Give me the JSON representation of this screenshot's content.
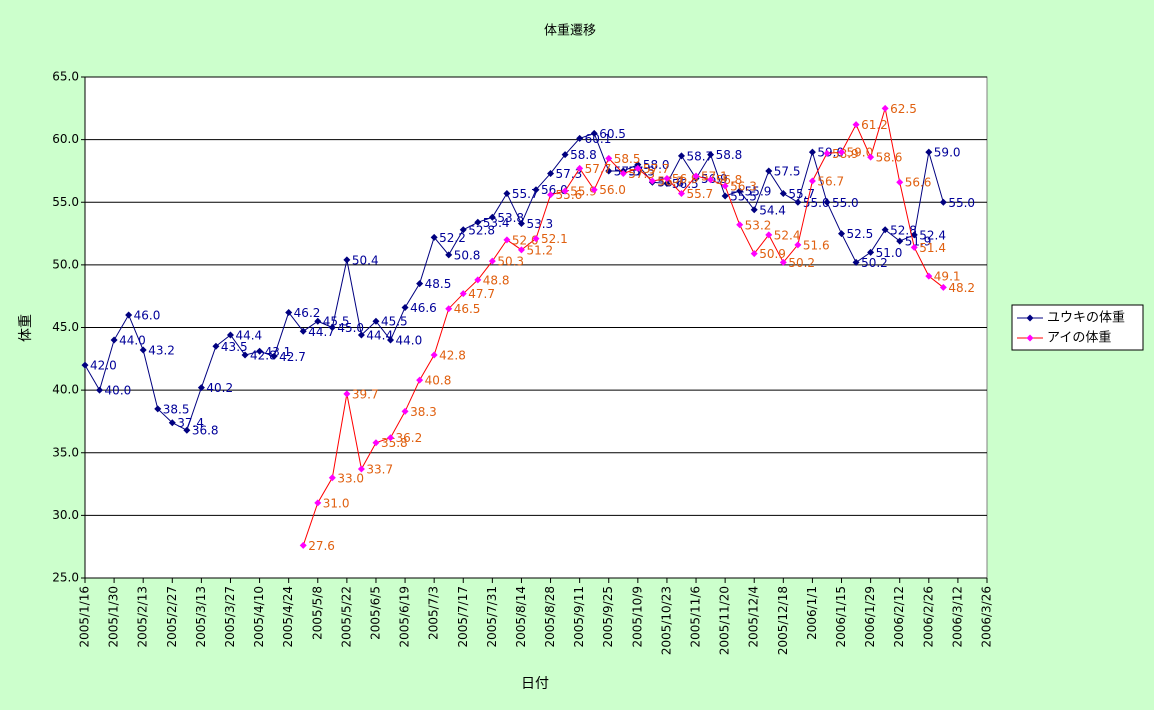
{
  "chart_data": {
    "type": "line",
    "title": "体重遷移",
    "xlabel": "日付",
    "ylabel": "体重",
    "x": [
      "2005/1/16",
      "2005/1/23",
      "2005/1/30",
      "2005/2/6",
      "2005/2/13",
      "2005/2/20",
      "2005/2/27",
      "2005/3/6",
      "2005/3/13",
      "2005/3/20",
      "2005/3/27",
      "2005/4/3",
      "2005/4/10",
      "2005/4/17",
      "2005/4/24",
      "2005/5/1",
      "2005/5/8",
      "2005/5/15",
      "2005/5/22",
      "2005/5/29",
      "2005/6/5",
      "2005/6/12",
      "2005/6/19",
      "2005/6/26",
      "2005/7/3",
      "2005/7/10",
      "2005/7/17",
      "2005/7/24",
      "2005/7/31",
      "2005/8/7",
      "2005/8/14",
      "2005/8/21",
      "2005/8/28",
      "2005/9/4",
      "2005/9/11",
      "2005/9/18",
      "2005/9/25",
      "2005/10/2",
      "2005/10/9",
      "2005/10/16",
      "2005/10/23",
      "2005/10/30",
      "2005/11/6",
      "2005/11/13",
      "2005/11/20",
      "2005/11/27",
      "2005/12/4",
      "2005/12/11",
      "2005/12/18",
      "2005/12/25",
      "2006/1/1",
      "2006/1/8",
      "2006/1/15",
      "2006/1/22",
      "2006/1/29",
      "2006/2/5",
      "2006/2/12",
      "2006/2/19",
      "2006/2/26",
      "2006/3/5"
    ],
    "series": [
      {
        "name": "ユウキの体重",
        "color": "#000080",
        "line_color": "#000080",
        "label_color": "#000099",
        "values": [
          42.0,
          40.0,
          44.0,
          46.0,
          43.2,
          38.5,
          37.4,
          36.8,
          40.2,
          43.5,
          44.4,
          42.8,
          43.1,
          42.7,
          46.2,
          44.7,
          45.5,
          45.0,
          50.4,
          44.4,
          45.5,
          44.0,
          46.6,
          48.5,
          52.2,
          50.8,
          52.8,
          53.4,
          53.8,
          55.7,
          53.3,
          56.0,
          57.3,
          58.8,
          60.1,
          60.5,
          57.5,
          57.5,
          58.0,
          56.6,
          56.5,
          58.7,
          56.9,
          58.8,
          55.5,
          55.9,
          54.4,
          57.5,
          55.7,
          55.0,
          59.0,
          55.0,
          52.5,
          50.2,
          51.0,
          52.8,
          51.9,
          52.4,
          59.0,
          55.0
        ],
        "value_labels": [
          "42.0",
          "40.0",
          "44.0",
          "46.0",
          "43.2",
          "38.5",
          "37.4",
          "36.8",
          "40.2",
          "43.5",
          "44.4",
          "42.8",
          "43.1",
          "42.7",
          "46.2",
          "44.7",
          "45.5",
          "45.0",
          "50.4",
          "44.4",
          "45.5",
          "44.0",
          "46.6",
          "48.5",
          "52.2",
          "50.8",
          "52.8",
          "53.4",
          "53.8",
          "55.7",
          "53.3",
          "56.0",
          "57.3",
          "58.8",
          "60.1",
          "60.5",
          "57.5",
          "57.5",
          "58.0",
          "56.6",
          "56.5",
          "58.7",
          "56.9",
          "58.8",
          "55.5",
          "55.9",
          "54.4",
          "57.5",
          "55.7",
          "55.0",
          "59.0",
          "55.0",
          "52.5",
          "50.2",
          "51.0",
          "52.8",
          "51.9",
          "52.4",
          "59.0",
          "55.0"
        ]
      },
      {
        "name": "アイの体重",
        "color": "#ff00ff",
        "line_color": "#ff0000",
        "label_color": "#e06010",
        "values": [
          null,
          null,
          null,
          null,
          null,
          null,
          null,
          null,
          null,
          null,
          null,
          null,
          null,
          null,
          null,
          27.6,
          31.0,
          33.0,
          39.7,
          33.7,
          35.8,
          36.2,
          38.3,
          40.8,
          42.8,
          46.5,
          47.7,
          48.8,
          50.3,
          52.0,
          51.2,
          52.1,
          55.6,
          55.9,
          57.7,
          56.0,
          58.5,
          57.3,
          57.7,
          56.7,
          56.9,
          55.7,
          57.1,
          56.8,
          56.3,
          53.2,
          50.9,
          52.4,
          50.2,
          51.6,
          56.7,
          58.9,
          59.0,
          61.2,
          58.6,
          62.5,
          56.6,
          51.4,
          49.1,
          48.2
        ],
        "value_labels": [
          null,
          null,
          null,
          null,
          null,
          null,
          null,
          null,
          null,
          null,
          null,
          null,
          null,
          null,
          null,
          "27.6",
          "31.0",
          "33.0",
          "39.7",
          "33.7",
          "35.8",
          "36.2",
          "38.3",
          "40.8",
          "42.8",
          "46.5",
          "47.7",
          "48.8",
          "50.3",
          "52.0",
          "51.2",
          "52.1",
          "55.6",
          "55.9",
          "57.7",
          "56.0",
          "58.5",
          "57.3",
          "57.7",
          "56.7",
          "56.9",
          "55.7",
          "57.1",
          "56.8",
          "56.3",
          "53.2",
          "50.9",
          "52.4",
          "50.2",
          "51.6",
          "56.7",
          "58.9",
          "59.0",
          "61.2",
          "58.6",
          "62.5",
          "56.6",
          "51.4",
          "49.1",
          "48.2"
        ]
      }
    ],
    "xlim": [
      "2005/1/16",
      "2006/3/26"
    ],
    "xticks": [
      "2005/1/16",
      "2005/1/30",
      "2005/2/13",
      "2005/2/27",
      "2005/3/13",
      "2005/3/27",
      "2005/4/10",
      "2005/4/24",
      "2005/5/8",
      "2005/5/22",
      "2005/6/5",
      "2005/6/19",
      "2005/7/3",
      "2005/7/17",
      "2005/7/31",
      "2005/8/14",
      "2005/8/28",
      "2005/9/11",
      "2005/9/25",
      "2005/10/9",
      "2005/10/23",
      "2005/11/6",
      "2005/11/20",
      "2005/12/4",
      "2005/12/18",
      "2006/1/1",
      "2006/1/15",
      "2006/1/29",
      "2006/2/12",
      "2006/2/26",
      "2006/3/12",
      "2006/3/26"
    ],
    "ylim": [
      25,
      65
    ],
    "yticks": [
      {
        "value": 25,
        "label": "25.0"
      },
      {
        "value": 30,
        "label": "30.0"
      },
      {
        "value": 35,
        "label": "35.0"
      },
      {
        "value": 40,
        "label": "40.0"
      },
      {
        "value": 45,
        "label": "45.0"
      },
      {
        "value": 50,
        "label": "50.0"
      },
      {
        "value": 55,
        "label": "55.0"
      },
      {
        "value": 60,
        "label": "60.0"
      },
      {
        "value": 65,
        "label": "65.0"
      }
    ],
    "grid": true,
    "legend": "right"
  }
}
